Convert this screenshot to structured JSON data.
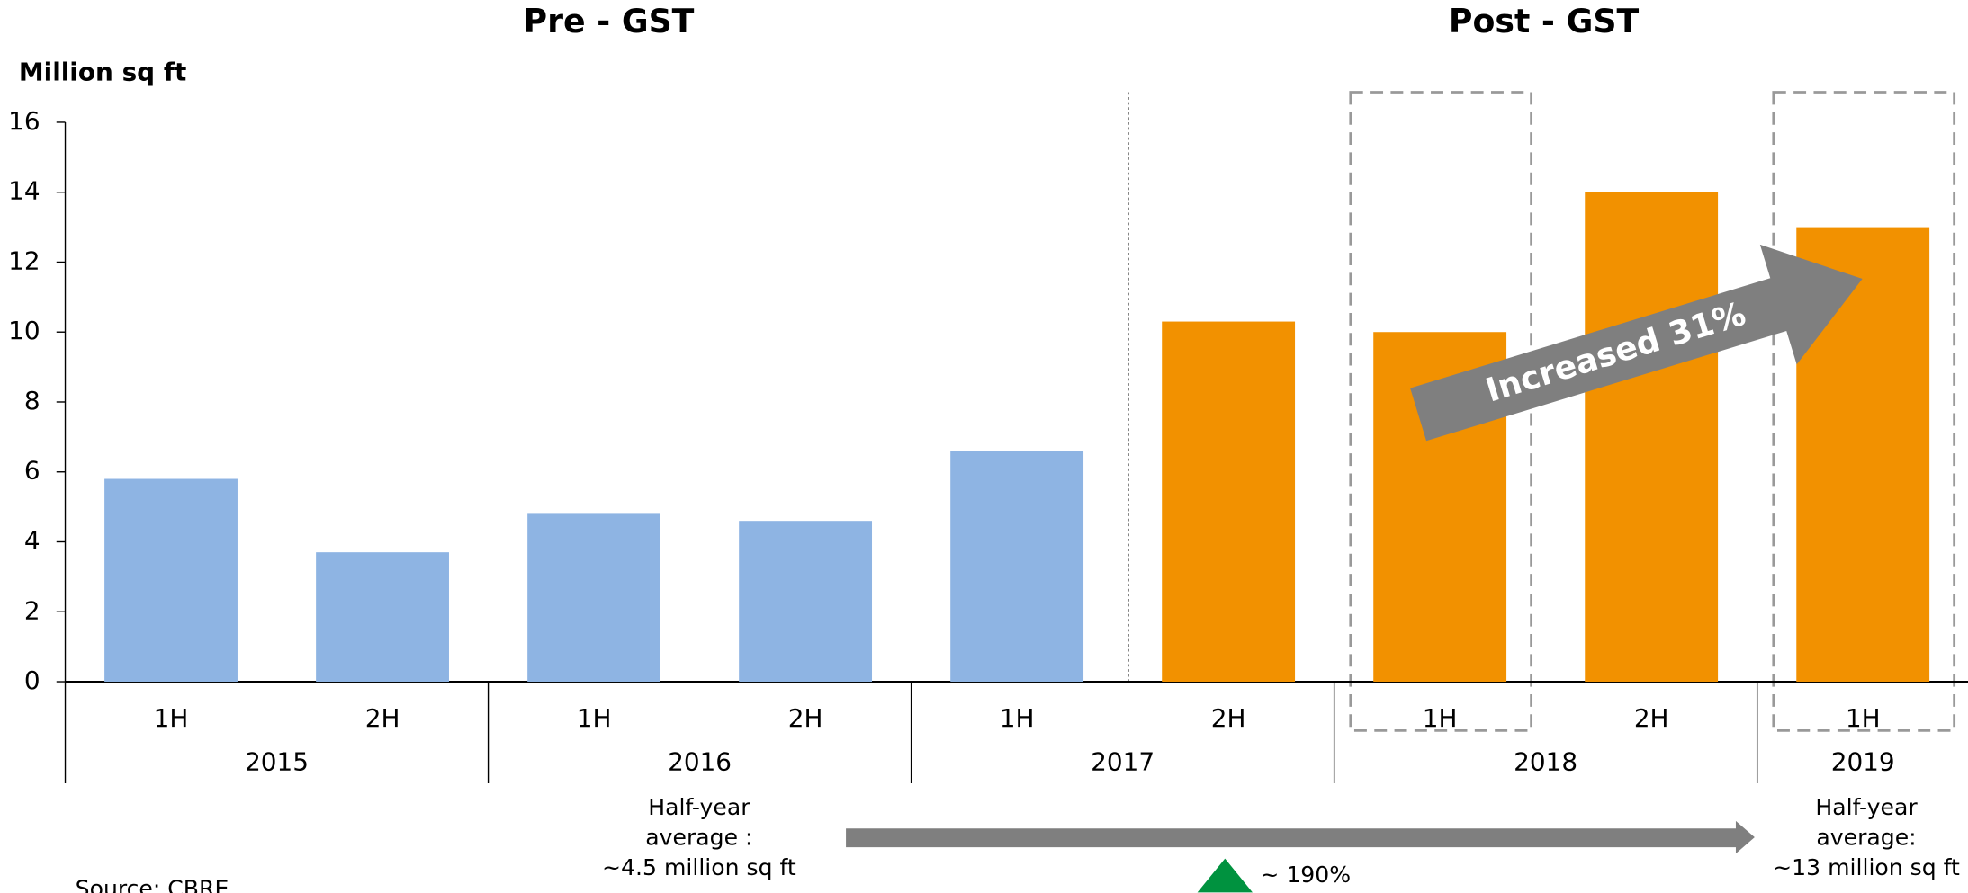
{
  "chart_data": {
    "type": "bar",
    "title_left": "Pre - GST",
    "title_right": "Post - GST",
    "ylabel": "Million sq ft",
    "groups": [
      {
        "label": "2015",
        "categories": [
          "1H",
          "2H"
        ]
      },
      {
        "label": "2016",
        "categories": [
          "1H",
          "2H"
        ]
      },
      {
        "label": "2017",
        "categories": [
          "1H",
          "2H"
        ]
      },
      {
        "label": "2018",
        "categories": [
          "1H",
          "2H"
        ]
      },
      {
        "label": "2019",
        "categories": [
          "1H"
        ]
      }
    ],
    "values": [
      5.8,
      3.7,
      4.8,
      4.6,
      6.6,
      10.3,
      10.0,
      14.0,
      13.0
    ],
    "colors": [
      "#8eb4e3",
      "#8eb4e3",
      "#8eb4e3",
      "#8eb4e3",
      "#8eb4e3",
      "#f29100",
      "#f29100",
      "#f29100",
      "#f29100"
    ],
    "ylim": [
      0,
      16
    ],
    "yticks": [
      0,
      2,
      4,
      6,
      8,
      10,
      12,
      14,
      16
    ],
    "annotations": {
      "increase": "Increased 31%",
      "pre_average": [
        "Half-year",
        "average :",
        "~4.5 million sq ft"
      ],
      "post_average": [
        "Half-year",
        "average:",
        "~13 million sq ft"
      ],
      "growth": "~ 190%",
      "source": "Source: CBRE"
    }
  }
}
